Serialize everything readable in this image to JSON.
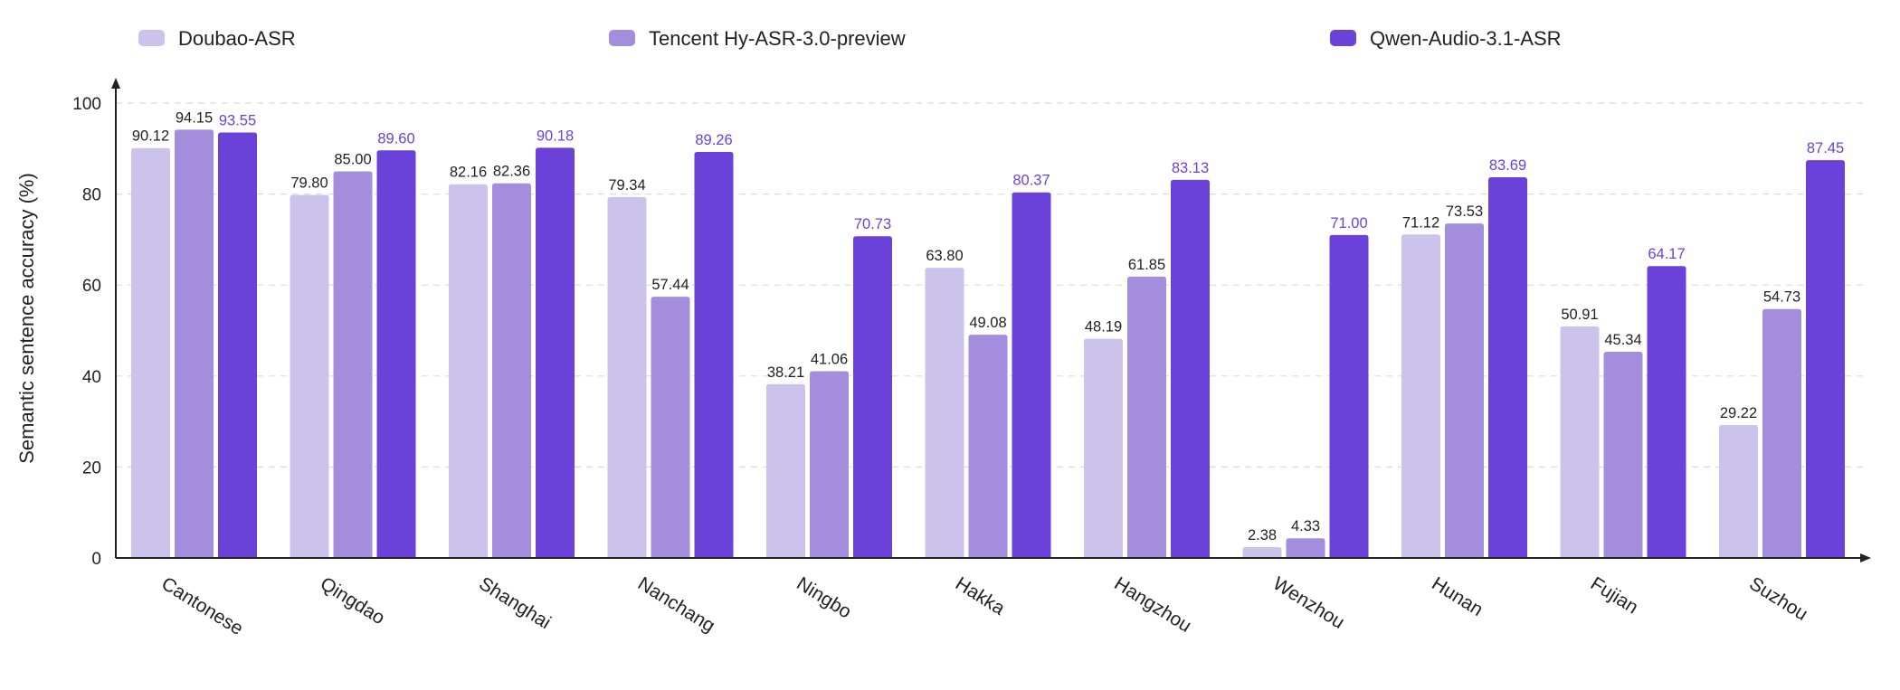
{
  "chart_data": {
    "type": "bar",
    "ylabel": "Semantic sentence accuracy (%)",
    "xlabel": "",
    "ylim": [
      0,
      100
    ],
    "yticks": [
      0,
      20,
      40,
      60,
      80,
      100
    ],
    "grid": "horizontal-dashed",
    "legend_position": "top",
    "categories": [
      "Cantonese",
      "Qingdao",
      "Shanghai",
      "Nanchang",
      "Ningbo",
      "Hakka",
      "Hangzhou",
      "Wenzhou",
      "Hunan",
      "Fujian",
      "Suzhou"
    ],
    "series": [
      {
        "name": "Doubao-ASR",
        "color": "#cbc3eb",
        "label_color": "#222222",
        "values": [
          90.12,
          79.8,
          82.16,
          79.34,
          38.21,
          63.8,
          48.19,
          2.38,
          71.12,
          50.91,
          29.22
        ],
        "labels": [
          "90.12",
          "79.80",
          "82.16",
          "79.34",
          "38.21",
          "63.80",
          "48.19",
          "2.38",
          "71.12",
          "50.91",
          "29.22"
        ]
      },
      {
        "name": "Tencent Hy-ASR-3.0-preview",
        "color": "#a38ddc",
        "label_color": "#222222",
        "values": [
          94.15,
          85.0,
          82.36,
          57.44,
          41.06,
          49.08,
          61.85,
          4.33,
          73.53,
          45.34,
          54.73
        ],
        "labels": [
          "94.15",
          "85.00",
          "82.36",
          "57.44",
          "41.06",
          "49.08",
          "61.85",
          "4.33",
          "73.53",
          "45.34",
          "54.73"
        ]
      },
      {
        "name": "Qwen-Audio-3.1-ASR",
        "color": "#6a42d9",
        "label_color": "#6a42d9",
        "values": [
          93.55,
          89.6,
          90.18,
          89.26,
          70.73,
          80.37,
          83.13,
          71.0,
          83.69,
          64.17,
          87.45
        ],
        "labels": [
          "93.55",
          "89.60",
          "90.18",
          "89.26",
          "70.73",
          "80.37",
          "83.13",
          "71.00",
          "83.69",
          "64.17",
          "87.45"
        ]
      }
    ]
  }
}
